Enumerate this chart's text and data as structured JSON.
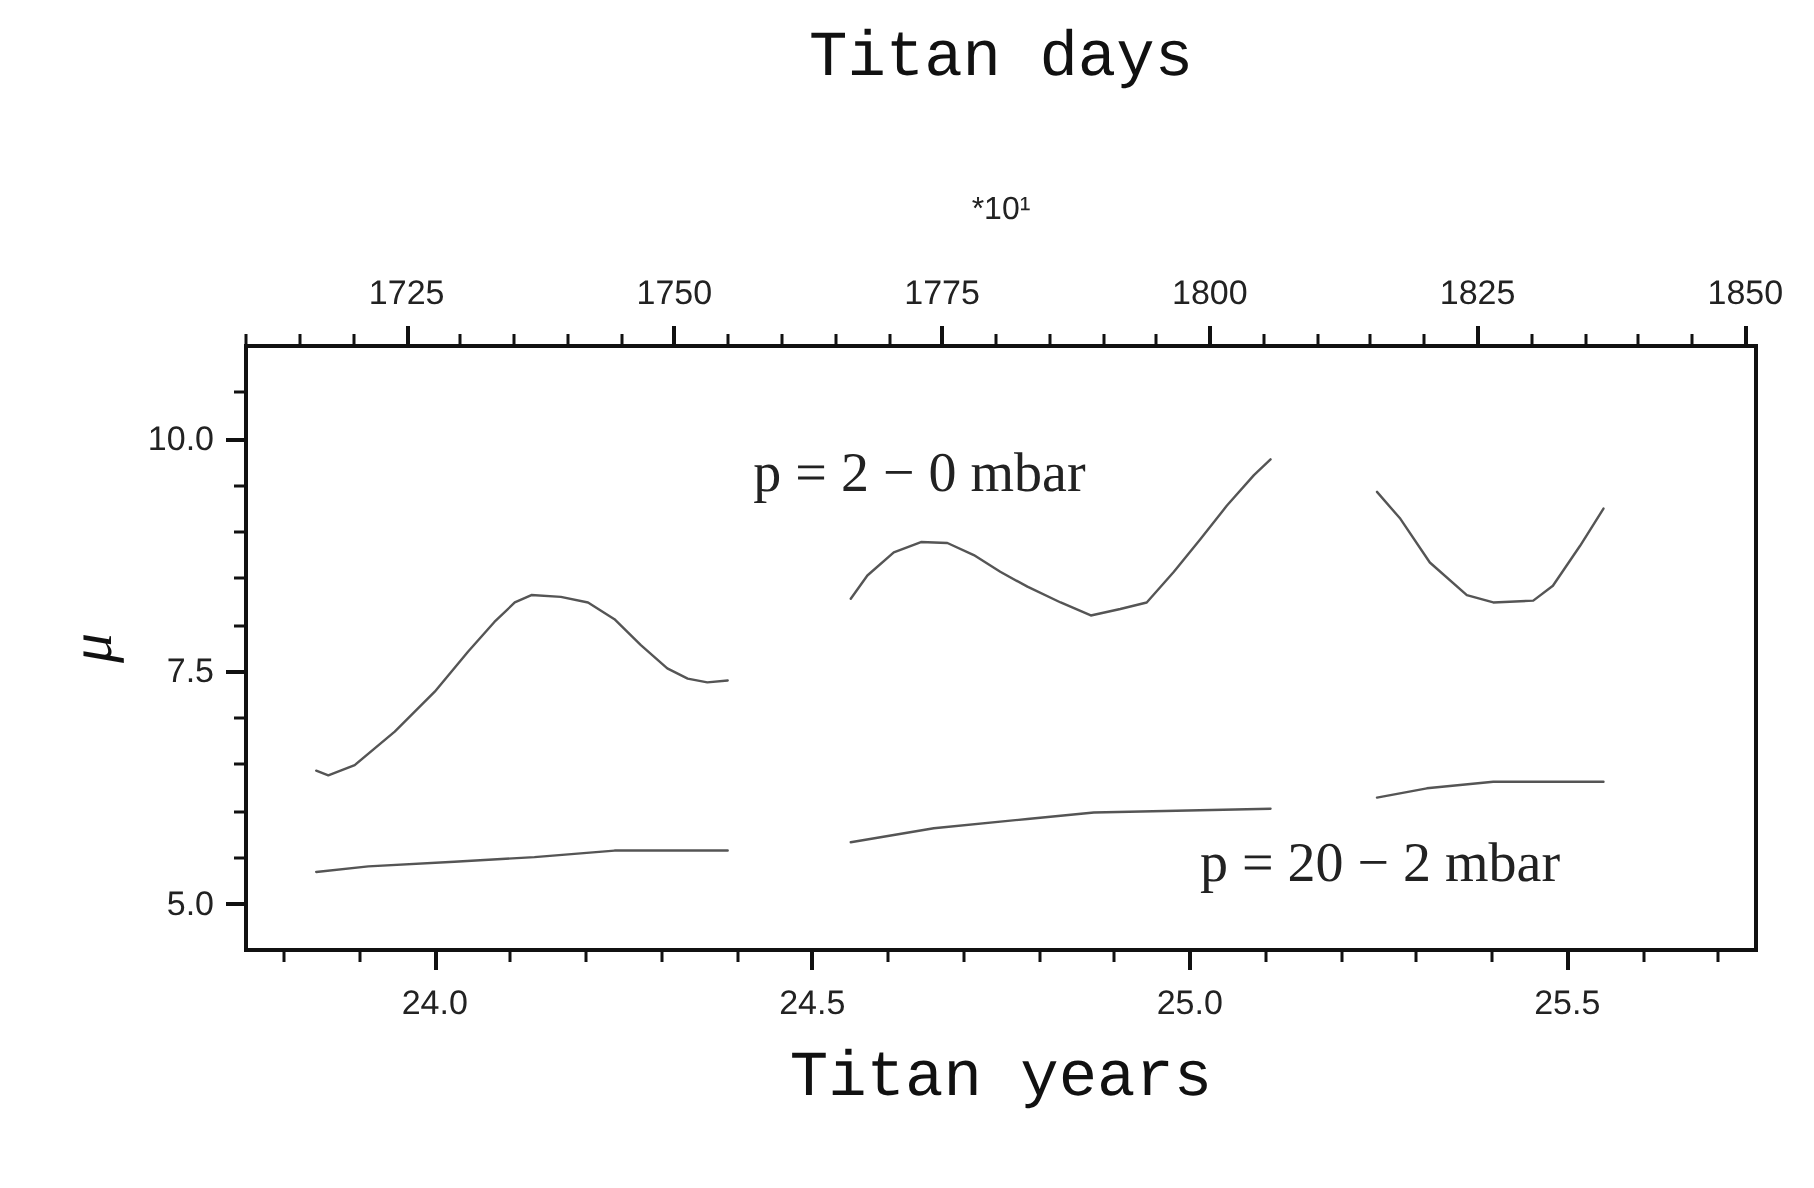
{
  "chart_data": {
    "type": "line",
    "xlabel": "Titan years",
    "x2label": "Titan days",
    "ylabel": "μ",
    "xlim": [
      23.75,
      25.75
    ],
    "xticks": [
      {
        "value": 23.8,
        "label": null
      },
      {
        "value": 23.9,
        "label": null
      },
      {
        "value": 24,
        "label": "24.0"
      },
      {
        "value": 24.1,
        "label": null
      },
      {
        "value": 24.2,
        "label": null
      },
      {
        "value": 24.3,
        "label": null
      },
      {
        "value": 24.4,
        "label": null
      },
      {
        "value": 24.5,
        "label": "24.5"
      },
      {
        "value": 24.6,
        "label": null
      },
      {
        "value": 24.7,
        "label": null
      },
      {
        "value": 24.8,
        "label": null
      },
      {
        "value": 24.9,
        "label": null
      },
      {
        "value": 25,
        "label": "25.0"
      },
      {
        "value": 25.1,
        "label": null
      },
      {
        "value": 25.2,
        "label": null
      },
      {
        "value": 25.3,
        "label": null
      },
      {
        "value": 25.4,
        "label": null
      },
      {
        "value": 25.5,
        "label": "25.5"
      },
      {
        "value": 25.6,
        "label": null
      },
      {
        "value": 25.7,
        "label": null
      }
    ],
    "x2lim": [
      1710,
      1851
    ],
    "x2ticks": [
      {
        "value": 1710,
        "label": null
      },
      {
        "value": 1715,
        "label": null
      },
      {
        "value": 1720,
        "label": null
      },
      1725,
      {
        "value": 1730,
        "label": null
      },
      {
        "value": 1735,
        "label": null
      },
      {
        "value": 1740,
        "label": null
      },
      {
        "value": 1745,
        "label": null
      },
      1750,
      {
        "value": 1755,
        "label": null
      },
      {
        "value": 1760,
        "label": null
      },
      {
        "value": 1765,
        "label": null
      },
      {
        "value": 1770,
        "label": null
      },
      1775,
      {
        "value": 1780,
        "label": null
      },
      {
        "value": 1785,
        "label": null
      },
      {
        "value": 1790,
        "label": null
      },
      {
        "value": 1795,
        "label": null
      },
      1800,
      {
        "value": 1805,
        "label": null
      },
      {
        "value": 1810,
        "label": null
      },
      {
        "value": 1815,
        "label": null
      },
      {
        "value": 1820,
        "label": null
      },
      1825,
      {
        "value": 1830,
        "label": null
      },
      {
        "value": 1835,
        "label": null
      },
      {
        "value": 1840,
        "label": null
      },
      {
        "value": 1845,
        "label": null
      },
      1850
    ],
    "ylim": [
      4.5,
      11
    ],
    "yticks": [
      {
        "value": 5,
        "label": "5.0"
      },
      {
        "value": 5.5,
        "label": null
      },
      {
        "value": 6,
        "label": null
      },
      {
        "value": 6.5,
        "label": null
      },
      {
        "value": 7,
        "label": null
      },
      {
        "value": 7.5,
        "label": "7.5"
      },
      {
        "value": 8,
        "label": null
      },
      {
        "value": 8.5,
        "label": null
      },
      {
        "value": 9,
        "label": null
      },
      {
        "value": 9.5,
        "label": null
      },
      {
        "value": 10,
        "label": "10.0"
      },
      {
        "value": 10.5,
        "label": null
      }
    ],
    "marker": "none",
    "line_style": "solid",
    "series": [
      {
        "color": "#555555",
        "x": [
          23.843,
          23.859,
          23.894,
          23.947,
          24.0,
          24.044,
          24.079,
          24.106,
          24.128,
          24.167,
          24.203,
          24.238,
          24.273,
          24.308,
          24.335,
          24.361,
          24.388,
          24.47,
          24.551,
          24.573,
          24.608,
          24.644,
          24.679,
          24.714,
          24.749,
          24.785,
          24.829,
          24.869,
          24.908,
          24.943,
          24.979,
          25.014,
          25.049,
          25.085,
          25.107,
          25.18,
          25.248,
          25.279,
          25.318,
          25.367,
          25.402,
          25.455,
          25.481,
          25.517,
          25.548
        ],
        "values": [
          6.43,
          6.38,
          6.49,
          6.85,
          7.28,
          7.71,
          8.03,
          8.24,
          8.32,
          8.3,
          8.24,
          8.06,
          7.78,
          7.53,
          7.42,
          7.38,
          7.4,
          null,
          8.28,
          8.53,
          8.78,
          8.89,
          8.88,
          8.75,
          8.57,
          8.41,
          8.24,
          8.1,
          8.17,
          8.24,
          8.57,
          8.92,
          9.28,
          9.61,
          9.78,
          null,
          9.43,
          9.14,
          8.67,
          8.32,
          8.24,
          8.26,
          8.42,
          8.85,
          9.25
        ]
      },
      {
        "color": "#555555",
        "x": [
          23.843,
          23.912,
          24.026,
          24.132,
          24.238,
          24.388,
          24.47,
          24.551,
          24.661,
          24.785,
          24.873,
          25.107,
          25.18,
          25.248,
          25.314,
          25.402,
          25.548
        ],
        "values": [
          5.34,
          5.4,
          5.45,
          5.5,
          5.57,
          5.57,
          null,
          5.66,
          5.81,
          5.91,
          5.98,
          6.02,
          null,
          6.14,
          6.24,
          6.31,
          6.31
        ]
      }
    ],
    "annotations": [
      "p = 2 − 0 mbar",
      "p = 20 − 2 mbar",
      "*10¹"
    ]
  }
}
